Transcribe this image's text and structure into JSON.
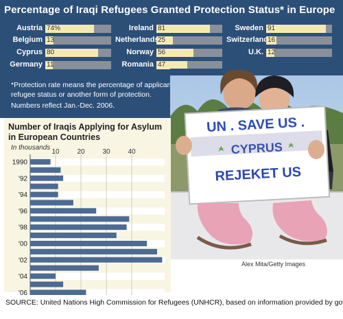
{
  "header": {
    "title": "Percentage of Iraqi Refugees Granted Protection Status* in Europe"
  },
  "protection_rates": [
    {
      "country": "Austria",
      "label": "74%",
      "value": 74
    },
    {
      "country": "Belgium",
      "label": "13",
      "value": 13
    },
    {
      "country": "Cyprus",
      "label": "80",
      "value": 80
    },
    {
      "country": "Germany",
      "label": "11",
      "value": 11
    },
    {
      "country": "Ireland",
      "label": "81",
      "value": 81
    },
    {
      "country": "Netherlands",
      "label": "25",
      "value": 25
    },
    {
      "country": "Norway",
      "label": "56",
      "value": 56
    },
    {
      "country": "Romania",
      "label": "47",
      "value": 47
    },
    {
      "country": "Sweden",
      "label": "91",
      "value": 91
    },
    {
      "country": "Switzerland",
      "label": "16",
      "value": 16
    },
    {
      "country": "U.K.",
      "label": "12",
      "value": 12
    }
  ],
  "footnote": {
    "line1": "*Protection rate means the percentage of applicants granted",
    "line2": "refugee status or another form of protection.",
    "line3": "Numbers reflect Jan.-Dec. 2006."
  },
  "photo": {
    "sign_line1": "UN . SAVE US .",
    "sign_line2": "CYPRUS",
    "sign_line3": "REJEKET US",
    "credit": "Alex Mita/Getty Images"
  },
  "chart_data": {
    "type": "bar",
    "orientation": "horizontal",
    "title_line1": "Number of Iraqis Applying for Asylum",
    "title_line2": "in European Countries",
    "unit": "In thousands",
    "categories": [
      "1990",
      "1991",
      "1992",
      "1993",
      "1994",
      "1995",
      "1996",
      "1997",
      "1998",
      "1999",
      "2000",
      "2001",
      "2002",
      "2003",
      "2004",
      "2005",
      "2006"
    ],
    "category_labels": [
      "1990",
      "",
      "'92",
      "",
      "'94",
      "",
      "'96",
      "",
      "'98",
      "",
      "'00",
      "",
      "'02",
      "",
      "'04",
      "",
      "'06"
    ],
    "values": [
      8,
      12,
      13,
      11,
      11,
      17,
      26,
      39,
      38,
      34,
      46,
      50,
      52,
      27,
      10,
      13,
      22
    ],
    "x_ticks": [
      "10",
      "20",
      "30",
      "40"
    ],
    "xlim": [
      0,
      54
    ],
    "grid": true,
    "bar_color": "#4d6a93"
  },
  "source": {
    "text": "SOURCE: United Nations High Commission for Refugees (UNHCR), based on information provided by governments."
  }
}
